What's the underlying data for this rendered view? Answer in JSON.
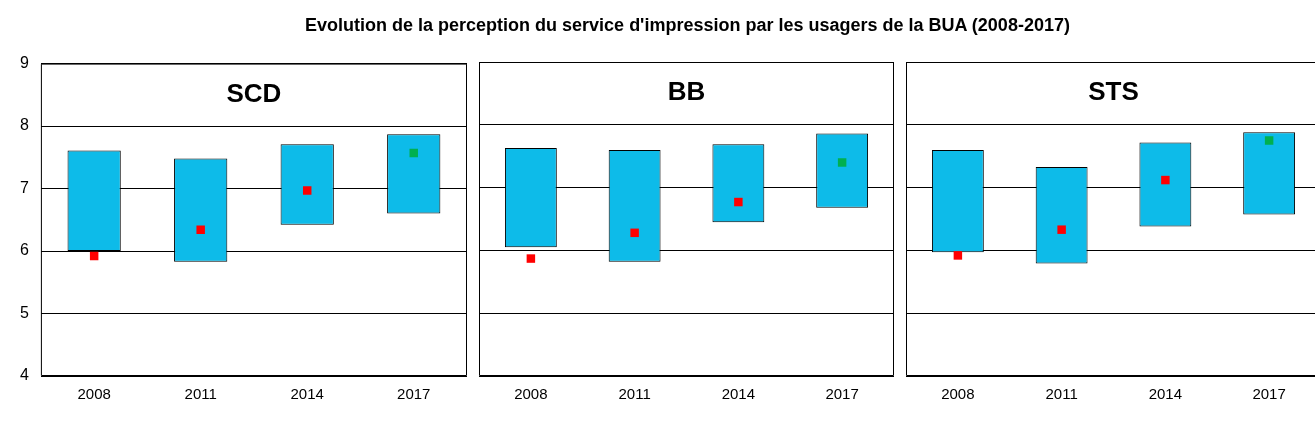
{
  "chart_data": [
    {
      "type": "bar",
      "title": "Evolution de la perception du service d'impression par les usagers de la BUA (2008-2017)",
      "annotations": [
        "SCD"
      ],
      "categories": [
        "2008",
        "2011",
        "2014",
        "2017"
      ],
      "ylim": [
        4,
        9
      ],
      "yticks": [
        4,
        5,
        6,
        7,
        8,
        9
      ],
      "grid": "y",
      "legend": false,
      "series": [
        {
          "color": "#0dbbe9",
          "base": [
            6.0,
            5.83,
            6.42,
            6.6
          ],
          "values": [
            1.61,
            1.65,
            1.29,
            1.27
          ]
        },
        {
          "type": "scatter",
          "marker": "square",
          "colors": [
            "#ff0000",
            "#ff0000",
            "#ff0000",
            "#00b050"
          ],
          "values": [
            5.92,
            6.34,
            6.97,
            7.57
          ]
        }
      ]
    },
    {
      "type": "bar",
      "annotations": [
        "BB"
      ],
      "categories": [
        "2008",
        "2011",
        "2014",
        "2017"
      ],
      "ylim": [
        4,
        9
      ],
      "yticks": [
        4,
        5,
        6,
        7,
        8,
        9
      ],
      "grid": "y",
      "legend": false,
      "tick_labels": "x",
      "series": [
        {
          "color": "#0dbbe9",
          "base": [
            6.05,
            5.82,
            6.45,
            6.68
          ],
          "values": [
            1.58,
            1.78,
            1.24,
            1.18
          ]
        },
        {
          "type": "scatter",
          "marker": "square",
          "colors": [
            "#ff0000",
            "#ff0000",
            "#ff0000",
            "#00b050"
          ],
          "values": [
            5.87,
            6.28,
            6.77,
            7.4
          ]
        }
      ]
    },
    {
      "type": "bar",
      "annotations": [
        "STS"
      ],
      "categories": [
        "2008",
        "2011",
        "2014",
        "2017"
      ],
      "ylim": [
        4,
        9
      ],
      "yticks": [
        4,
        5,
        6,
        7,
        8,
        9
      ],
      "grid": "y",
      "legend": false,
      "tick_labels": "x",
      "series": [
        {
          "color": "#0dbbe9",
          "base": [
            5.97,
            5.79,
            6.38,
            6.57
          ],
          "values": [
            1.63,
            1.54,
            1.34,
            1.31
          ]
        },
        {
          "type": "scatter",
          "marker": "square",
          "colors": [
            "#ff0000",
            "#ff0000",
            "#ff0000",
            "#00b050"
          ],
          "values": [
            5.92,
            6.33,
            7.12,
            7.75
          ]
        }
      ]
    }
  ]
}
